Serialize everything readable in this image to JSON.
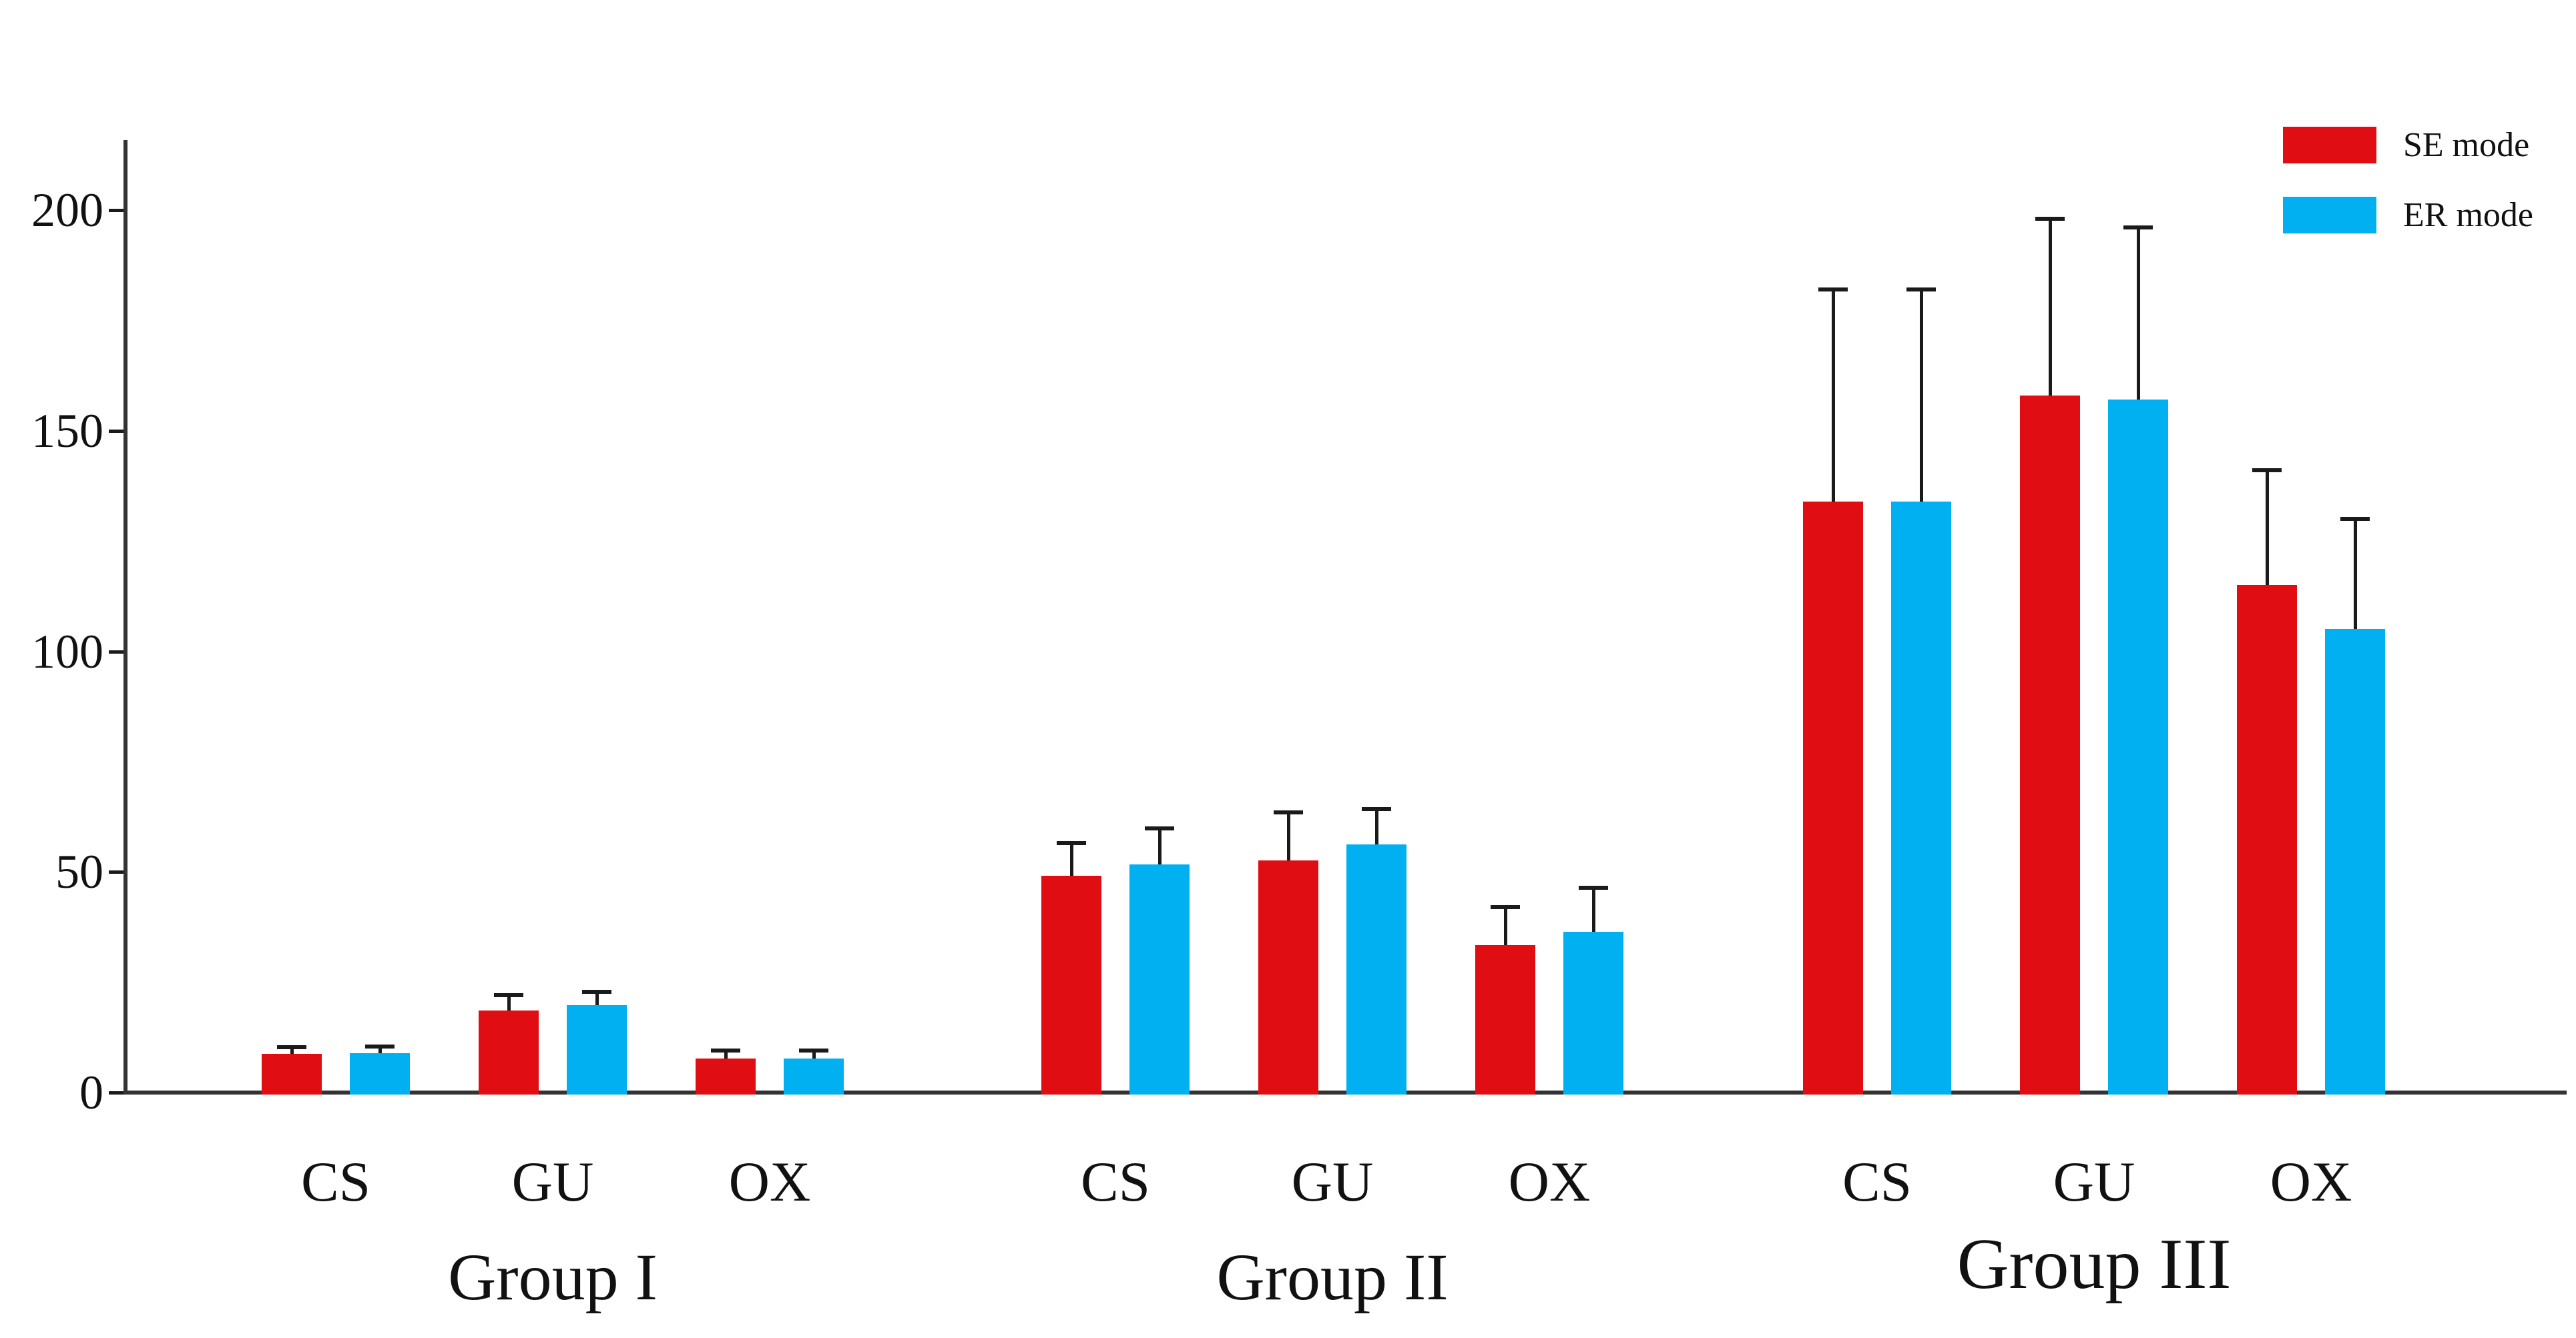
{
  "chart_data": {
    "type": "bar",
    "title": "",
    "xlabel": "",
    "ylabel": "",
    "ylim": [
      0,
      215
    ],
    "yticks": [
      0,
      50,
      100,
      150,
      200
    ],
    "ytick_labels": [
      "0",
      "50",
      "100",
      "150",
      "200"
    ],
    "grid": false,
    "legend": {
      "position": "top-right",
      "entries": [
        {
          "label": "SE mode",
          "color": "#e00d13"
        },
        {
          "label": "ER mode",
          "color": "#00b0f0"
        }
      ]
    },
    "groups": [
      {
        "label": "Group I",
        "categories": [
          "CS",
          "GU",
          "OX"
        ],
        "series": [
          {
            "name": "SE mode",
            "values": [
              8.8,
              18.6,
              7.7
            ],
            "errors": [
              1.5,
              3.5,
              1.8
            ]
          },
          {
            "name": "ER mode",
            "values": [
              8.9,
              19.8,
              7.7
            ],
            "errors": [
              1.5,
              3.0,
              1.8
            ]
          }
        ]
      },
      {
        "label": "Group II",
        "categories": [
          "CS",
          "GU",
          "OX"
        ],
        "series": [
          {
            "name": "SE mode",
            "values": [
              49.1,
              52.6,
              33.4
            ],
            "errors": [
              7.4,
              10.9,
              8.6
            ]
          },
          {
            "name": "ER mode",
            "values": [
              51.7,
              56.2,
              36.4
            ],
            "errors": [
              8.2,
              8.0,
              10.0
            ]
          }
        ]
      },
      {
        "label": "Group III",
        "categories": [
          "CS",
          "GU",
          "OX"
        ],
        "series": [
          {
            "name": "SE mode",
            "values": [
              134,
              158,
              115
            ],
            "errors": [
              48,
              40,
              26
            ]
          },
          {
            "name": "ER mode",
            "values": [
              134,
              157,
              105
            ],
            "errors": [
              48,
              39,
              25
            ]
          }
        ]
      }
    ]
  }
}
